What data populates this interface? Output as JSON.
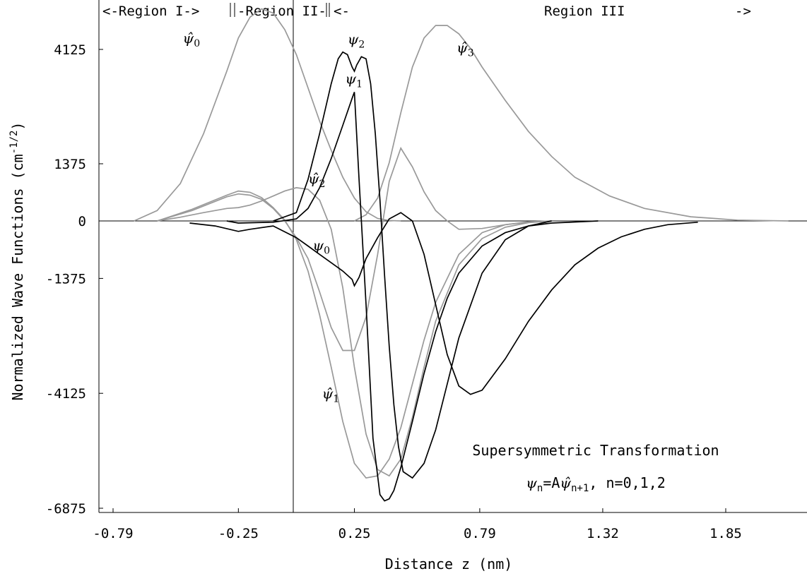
{
  "chart_data": {
    "type": "line",
    "xlabel": "Distance z (nm)",
    "ylabel": "Normalized Wave Functions (cm",
    "ylabel_sup": "-1/2",
    "ylabel_close": ")",
    "x_ticks": [
      "-0.79",
      "-0.25",
      "0.25",
      "0.79",
      "1.32",
      "1.85"
    ],
    "x_tick_values": [
      -0.79,
      -0.25,
      0.25,
      0.79,
      1.32,
      1.85
    ],
    "y_ticks": [
      "4125",
      "1375",
      "0",
      "-1375",
      "-4125",
      "-6875"
    ],
    "y_tick_values": [
      4125,
      1375,
      0,
      -1375,
      -4125,
      -6875
    ],
    "xlim": [
      -0.79,
      2.2
    ],
    "ylim": [
      -6875,
      5300
    ],
    "region_header": {
      "r1": "<-Region I->",
      "r2": "-Region II-",
      "r3": "<-",
      "r3_name": "Region III",
      "r3_end": "->"
    },
    "annotation": {
      "line1": "Supersymmetric Transformation",
      "formula_left": "ψ",
      "formula_sub_n": "n",
      "formula_eq": "=A",
      "formula_hat": "ψ̂",
      "formula_sub_n1": "n+1",
      "formula_rest": ", n=0,1,2"
    },
    "series": [
      {
        "name": "ψ̂0",
        "color": "#999999",
        "x": [
          -0.7,
          -0.6,
          -0.5,
          -0.4,
          -0.3,
          -0.25,
          -0.2,
          -0.15,
          -0.1,
          -0.05,
          0.0,
          0.05,
          0.1,
          0.15,
          0.2,
          0.25,
          0.3,
          0.35,
          0.4,
          0.45
        ],
        "y": [
          0,
          250,
          900,
          2100,
          3600,
          4400,
          4900,
          5100,
          5000,
          4600,
          4000,
          3200,
          2400,
          1700,
          1050,
          550,
          220,
          60,
          10,
          0
        ]
      },
      {
        "name": "ψ̂3",
        "color": "#999999",
        "x": [
          0.25,
          0.3,
          0.35,
          0.4,
          0.45,
          0.5,
          0.55,
          0.6,
          0.65,
          0.7,
          0.75,
          0.8,
          0.9,
          1.0,
          1.1,
          1.2,
          1.35,
          1.5,
          1.7,
          1.9,
          2.12
        ],
        "y": [
          0,
          150,
          550,
          1400,
          2600,
          3700,
          4400,
          4700,
          4700,
          4500,
          4150,
          3700,
          2900,
          2150,
          1550,
          1050,
          600,
          300,
          100,
          20,
          0
        ]
      },
      {
        "name": "ψ̂2",
        "color": "#999999",
        "x": [
          -0.6,
          -0.5,
          -0.4,
          -0.3,
          -0.25,
          -0.2,
          -0.15,
          -0.1,
          -0.05,
          0.0,
          0.05,
          0.1,
          0.15,
          0.2,
          0.25,
          0.3,
          0.35,
          0.4,
          0.45,
          0.5,
          0.55,
          0.6,
          0.7,
          0.8,
          0.9,
          1.0,
          1.1
        ],
        "y": [
          0,
          90,
          200,
          300,
          320,
          380,
          480,
          600,
          720,
          800,
          760,
          500,
          -200,
          -1600,
          -3500,
          -5100,
          -5950,
          -6100,
          -5700,
          -4700,
          -3500,
          -2400,
          -1050,
          -420,
          -150,
          -40,
          0
        ]
      },
      {
        "name": "ψ̂1",
        "color": "#999999",
        "x": [
          -0.6,
          -0.45,
          -0.3,
          -0.25,
          -0.2,
          -0.15,
          -0.1,
          -0.05,
          0.0,
          0.05,
          0.1,
          0.15,
          0.2,
          0.25,
          0.3,
          0.35,
          0.4,
          0.45,
          0.5,
          0.55,
          0.6,
          0.65,
          0.7,
          0.8,
          0.9,
          1.0,
          1.1
        ],
        "y": [
          0,
          250,
          580,
          650,
          620,
          520,
          300,
          0,
          -400,
          -900,
          -1700,
          -2550,
          -3100,
          -3100,
          -2300,
          -800,
          950,
          1750,
          1300,
          700,
          250,
          0,
          -200,
          -180,
          -90,
          -30,
          0
        ]
      },
      {
        "name": "ψ̂0 (mid)",
        "color": "#999999",
        "x": [
          -0.6,
          -0.45,
          -0.3,
          -0.25,
          -0.2,
          -0.15,
          -0.1,
          -0.05,
          0.0,
          0.05,
          0.1,
          0.15,
          0.2,
          0.25,
          0.3,
          0.35,
          0.4,
          0.45,
          0.5,
          0.55,
          0.6,
          0.7,
          0.8,
          0.9,
          1.0,
          1.1
        ],
        "y": [
          0,
          280,
          620,
          720,
          690,
          560,
          320,
          20,
          -450,
          -1200,
          -2250,
          -3500,
          -4800,
          -5800,
          -6150,
          -6100,
          -5700,
          -4950,
          -3900,
          -2850,
          -1950,
          -800,
          -280,
          -90,
          -20,
          0
        ]
      },
      {
        "name": "ψ2",
        "color": "#000000",
        "x": [
          -0.1,
          0.0,
          0.05,
          0.1,
          0.15,
          0.18,
          0.2,
          0.22,
          0.24,
          0.25,
          0.26,
          0.28,
          0.3,
          0.32,
          0.34,
          0.36,
          0.38,
          0.4,
          0.42,
          0.44,
          0.46,
          0.5,
          0.55,
          0.6,
          0.65,
          0.7,
          0.8,
          0.9,
          1.0,
          1.1
        ],
        "y": [
          0,
          200,
          1000,
          2100,
          3300,
          3900,
          4060,
          4000,
          3700,
          3600,
          3750,
          3950,
          3900,
          3300,
          2100,
          500,
          -1300,
          -3000,
          -4400,
          -5400,
          -6000,
          -6150,
          -5800,
          -5000,
          -3900,
          -2800,
          -1250,
          -450,
          -120,
          0
        ]
      },
      {
        "name": "ψ1",
        "color": "#000000",
        "x": [
          -0.3,
          -0.25,
          -0.1,
          0.0,
          0.05,
          0.1,
          0.15,
          0.2,
          0.24,
          0.25,
          0.27,
          0.3,
          0.33,
          0.36,
          0.38,
          0.4,
          0.42,
          0.45,
          0.5,
          0.55,
          0.6,
          0.65,
          0.7,
          0.8,
          0.9,
          1.0,
          1.1,
          1.3
        ],
        "y": [
          0,
          -50,
          -30,
          50,
          300,
          800,
          1500,
          2300,
          2950,
          3100,
          1000,
          -2000,
          -5200,
          -6550,
          -6700,
          -6650,
          -6450,
          -5900,
          -4800,
          -3650,
          -2650,
          -1850,
          -1250,
          -600,
          -280,
          -120,
          -50,
          0
        ]
      },
      {
        "name": "ψ0",
        "color": "#000000",
        "x": [
          -0.46,
          -0.35,
          -0.25,
          -0.2,
          -0.1,
          0.0,
          0.05,
          0.1,
          0.15,
          0.2,
          0.24,
          0.25,
          0.27,
          0.3,
          0.35,
          0.4,
          0.45,
          0.5,
          0.55,
          0.6,
          0.65,
          0.7,
          0.75,
          0.8,
          0.9,
          1.0,
          1.1,
          1.2,
          1.3,
          1.4,
          1.5,
          1.6,
          1.73
        ],
        "y": [
          -50,
          -120,
          -250,
          -200,
          -120,
          -400,
          -600,
          -800,
          -1000,
          -1200,
          -1400,
          -1550,
          -1350,
          -900,
          -400,
          50,
          200,
          0,
          -800,
          -2000,
          -3200,
          -3950,
          -4150,
          -4050,
          -3300,
          -2400,
          -1650,
          -1050,
          -650,
          -380,
          -200,
          -90,
          -30
        ]
      }
    ],
    "series_labels": [
      {
        "base": "ψ̂",
        "sub": "0",
        "x": -0.49,
        "y": 4280
      },
      {
        "base": "ψ",
        "sub": "2",
        "x": 0.22,
        "y": 4250
      },
      {
        "base": "ψ̂",
        "sub": "3",
        "x": 0.69,
        "y": 4050
      },
      {
        "base": "ψ",
        "sub": "1",
        "x": 0.21,
        "y": 3300
      },
      {
        "base": "ψ̂",
        "sub": "2",
        "x": 0.05,
        "y": 900
      },
      {
        "base": "ψ",
        "sub": "0",
        "x": 0.07,
        "y": -700
      },
      {
        "base": "ψ̂",
        "sub": "1",
        "x": 0.11,
        "y": -4250
      }
    ]
  }
}
